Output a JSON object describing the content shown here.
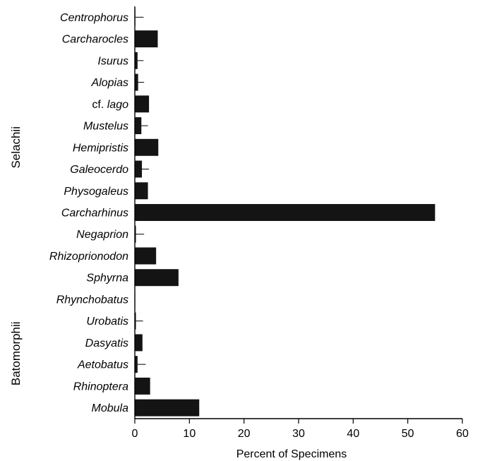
{
  "chart_data": {
    "type": "bar",
    "orientation": "horizontal",
    "categories": [
      {
        "label": "Centrophorus",
        "italic": true,
        "value": 0.1,
        "error": 1.5
      },
      {
        "label": "Carcharocles",
        "italic": true,
        "value": 4.2,
        "error": 0
      },
      {
        "label": "Isurus",
        "italic": true,
        "value": 0.5,
        "error": 1.1
      },
      {
        "label": "Alopias",
        "italic": true,
        "value": 0.6,
        "error": 1.1
      },
      {
        "label_prefix": "cf. ",
        "label": "lago",
        "italic": true,
        "value": 2.6,
        "error": 0
      },
      {
        "label": "Mustelus",
        "italic": true,
        "value": 1.2,
        "error": 1.2
      },
      {
        "label": "Hemipristis",
        "italic": true,
        "value": 4.3,
        "error": 0
      },
      {
        "label": "Galeocerdo",
        "italic": true,
        "value": 1.3,
        "error": 1.3
      },
      {
        "label": "Physogaleus",
        "italic": true,
        "value": 2.4,
        "error": 0
      },
      {
        "label": "Carcharhinus",
        "italic": true,
        "value": 55.0,
        "error": 0
      },
      {
        "label": "Negaprion",
        "italic": true,
        "value": 0.2,
        "error": 1.5
      },
      {
        "label": "Rhizoprionodon",
        "italic": true,
        "value": 3.9,
        "error": 0
      },
      {
        "label": "Sphyrna",
        "italic": true,
        "value": 8.0,
        "error": 0
      },
      {
        "label": "Rhynchobatus",
        "italic": true,
        "value": 0.05,
        "error": 0
      },
      {
        "label": "Urobatis",
        "italic": true,
        "value": 0.2,
        "error": 1.3
      },
      {
        "label": "Dasyatis",
        "italic": true,
        "value": 1.4,
        "error": 0
      },
      {
        "label": "Aetobatus",
        "italic": true,
        "value": 0.5,
        "error": 1.5
      },
      {
        "label": "Rhinoptera",
        "italic": true,
        "value": 2.8,
        "error": 0
      },
      {
        "label": "Mobula",
        "italic": true,
        "value": 11.8,
        "error": 0
      }
    ],
    "groups": [
      {
        "name": "Selachii",
        "from": 0,
        "to": 12
      },
      {
        "name": "Batomorphii",
        "from": 13,
        "to": 18
      }
    ],
    "xlabel": "Percent of Specimens",
    "xlim": [
      0,
      60
    ],
    "xticks": [
      0,
      10,
      20,
      30,
      40,
      50,
      60
    ],
    "bar_color": "#141414",
    "grid": false,
    "legend": "none"
  }
}
